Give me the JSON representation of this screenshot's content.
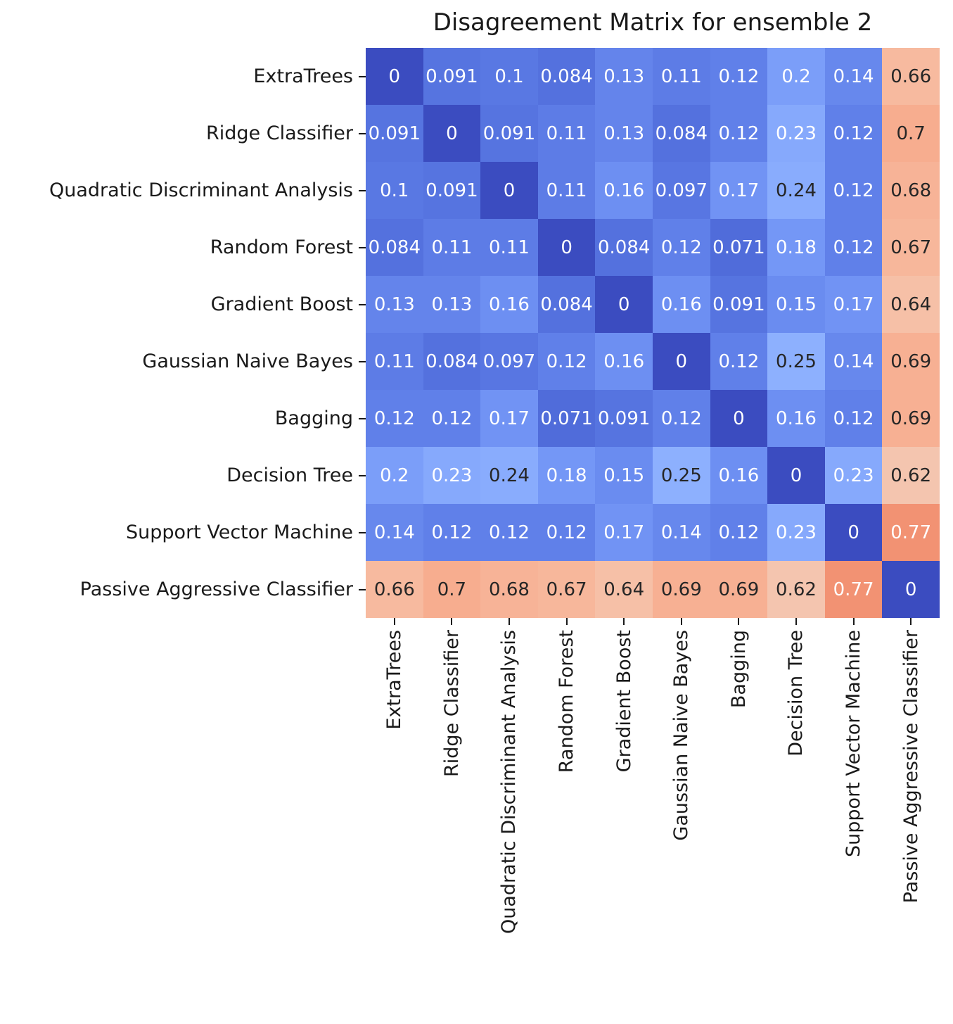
{
  "chart_data": {
    "type": "heatmap",
    "title": "Disagreement Matrix for ensemble 2",
    "categories": [
      "ExtraTrees",
      "Ridge Classifier",
      "Quadratic Discriminant Analysis",
      "Random Forest",
      "Gradient Boost",
      "Gaussian Naive Bayes",
      "Bagging",
      "Decision Tree",
      "Support Vector Machine",
      "Passive Aggressive Classifier"
    ],
    "matrix": [
      [
        0,
        0.091,
        0.1,
        0.084,
        0.13,
        0.11,
        0.12,
        0.2,
        0.14,
        0.66
      ],
      [
        0.091,
        0,
        0.091,
        0.11,
        0.13,
        0.084,
        0.12,
        0.23,
        0.12,
        0.7
      ],
      [
        0.1,
        0.091,
        0,
        0.11,
        0.16,
        0.097,
        0.17,
        0.24,
        0.12,
        0.68
      ],
      [
        0.084,
        0.11,
        0.11,
        0,
        0.084,
        0.12,
        0.071,
        0.18,
        0.12,
        0.67
      ],
      [
        0.13,
        0.13,
        0.16,
        0.084,
        0,
        0.16,
        0.091,
        0.15,
        0.17,
        0.64
      ],
      [
        0.11,
        0.084,
        0.097,
        0.12,
        0.16,
        0,
        0.12,
        0.25,
        0.14,
        0.69
      ],
      [
        0.12,
        0.12,
        0.17,
        0.071,
        0.091,
        0.12,
        0,
        0.16,
        0.12,
        0.69
      ],
      [
        0.2,
        0.23,
        0.24,
        0.18,
        0.15,
        0.25,
        0.16,
        0,
        0.23,
        0.62
      ],
      [
        0.14,
        0.12,
        0.12,
        0.12,
        0.17,
        0.14,
        0.12,
        0.23,
        0,
        0.77
      ],
      [
        0.66,
        0.7,
        0.68,
        0.67,
        0.64,
        0.69,
        0.69,
        0.62,
        0.77,
        0
      ]
    ],
    "value_format": "2 significant digits",
    "colormap": "coolwarm",
    "vmin": 0,
    "vmax": 1,
    "grid": false,
    "legend": "none",
    "colors": {
      "annotation_dark": "#262626",
      "annotation_light": "#ffffff",
      "axis_text": "#1a1a1a",
      "background": "#ffffff"
    },
    "colormap_stops": [
      "#3B4CC0",
      "#445ACC",
      "#4D68D7",
      "#5775E1",
      "#6282EA",
      "#6C8EF1",
      "#779AF7",
      "#82A5FB",
      "#8DB0FE",
      "#98B9FF",
      "#A3C2FF",
      "#AEC9FD",
      "#B8D0F9",
      "#C2D5F4",
      "#CCD9EE",
      "#D5DBE6",
      "#DDDDDD",
      "#E5D8D1",
      "#ECD3C5",
      "#F1CCB9",
      "#F5C4AD",
      "#F7BBA0",
      "#F7B194",
      "#F7A687",
      "#F49A7B",
      "#F18D6F",
      "#EC7F63",
      "#E57058",
      "#DE604D",
      "#D55042",
      "#CB3E38",
      "#C0282F",
      "#B40426"
    ]
  }
}
